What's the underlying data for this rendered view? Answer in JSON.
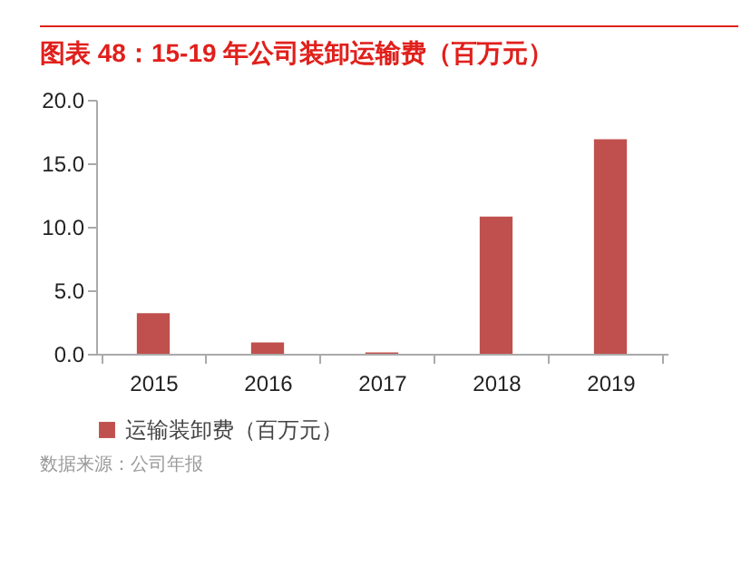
{
  "chart_data": {
    "type": "bar",
    "title": "图表 48：15-19 年公司装卸运输费（百万元）",
    "categories": [
      "2015",
      "2016",
      "2017",
      "2018",
      "2019"
    ],
    "series": [
      {
        "name": "运输装卸费（百万元）",
        "color": "#c0504d",
        "values": [
          3.2,
          0.9,
          0.1,
          10.8,
          16.9
        ]
      }
    ],
    "ylim": [
      0,
      20
    ],
    "yticks": [
      {
        "value": 0,
        "label": "0.0"
      },
      {
        "value": 5,
        "label": "5.0"
      },
      {
        "value": 10,
        "label": "10.0"
      },
      {
        "value": 15,
        "label": "15.0"
      },
      {
        "value": 20,
        "label": "20.0"
      }
    ],
    "grid": false,
    "legend": "bottom",
    "annotations": [
      "数据来源：公司年报"
    ]
  }
}
